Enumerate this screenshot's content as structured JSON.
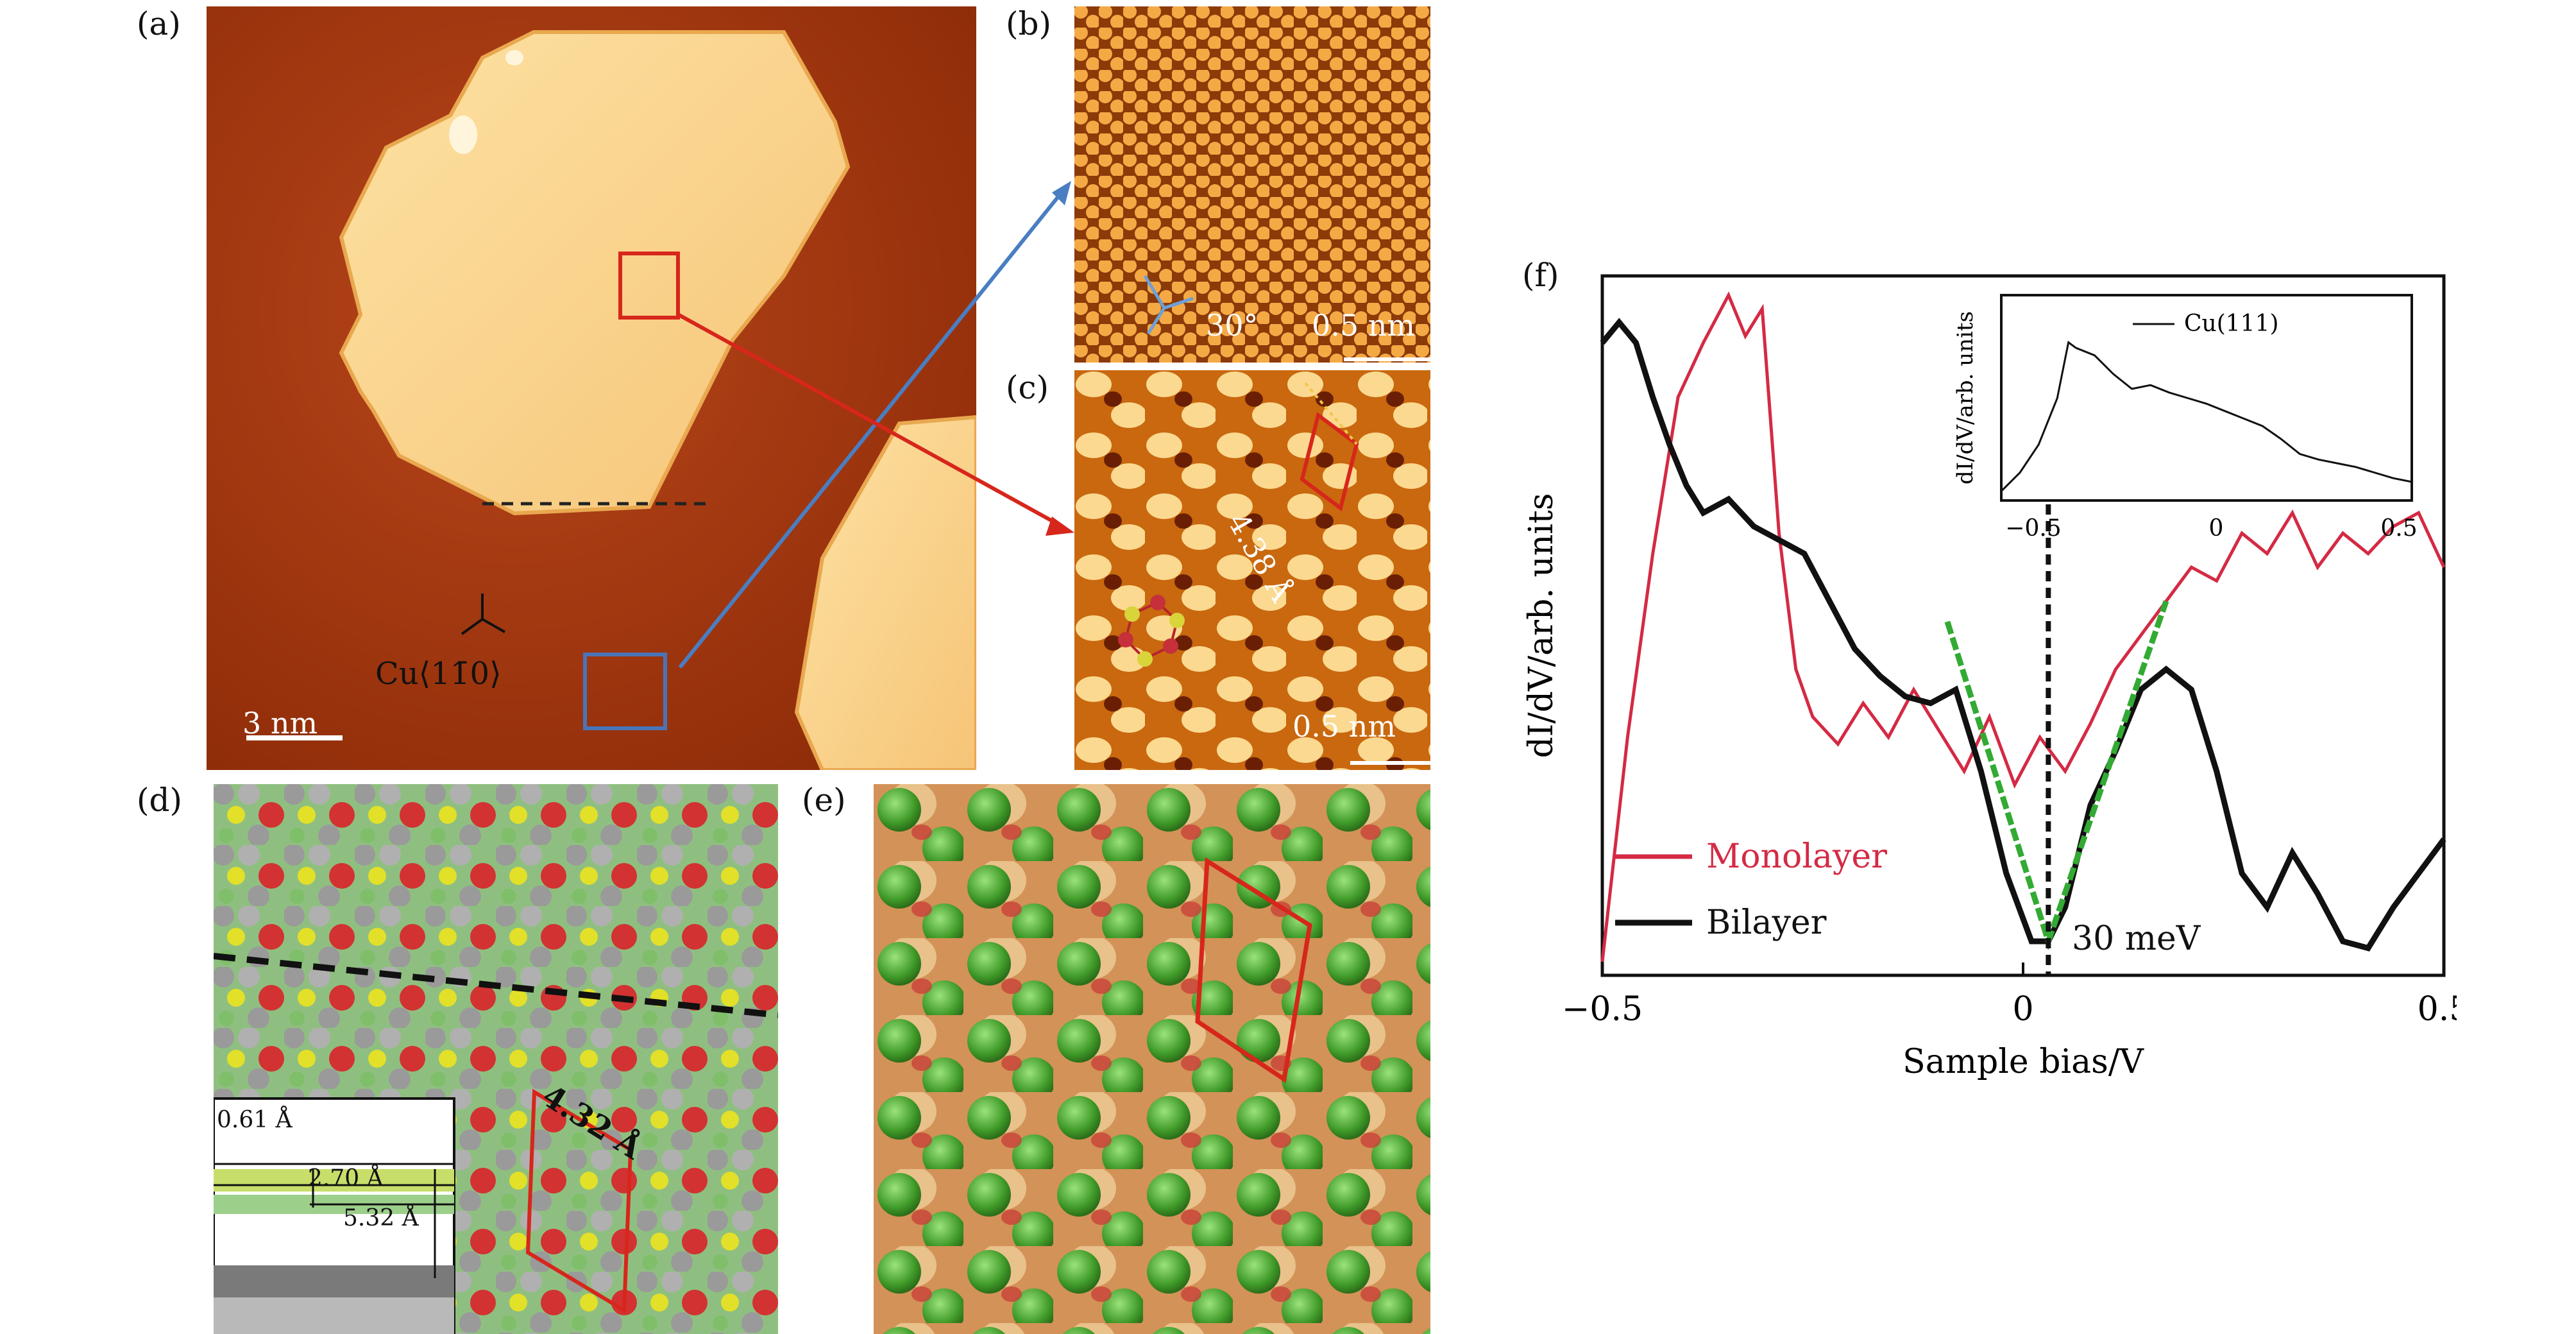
{
  "panels": {
    "a": {
      "label": "(a)",
      "scale": "3 nm",
      "direction": "Cu⟨11̄0⟩"
    },
    "b": {
      "label": "(b)",
      "angle": "30°",
      "scale": "0.5 nm"
    },
    "c": {
      "label": "(c)",
      "lattice": "4.38 Å",
      "scale": "0.5 nm"
    },
    "d": {
      "label": "(d)",
      "lattice": "4.32 Å",
      "inset": {
        "d1": "0.61 Å",
        "d2": "2.70 Å",
        "d3": "5.32 Å"
      }
    },
    "e": {
      "label": "(e)"
    },
    "f": {
      "label": "(f)"
    }
  },
  "colors": {
    "monolayer": "#d42a44",
    "bilayer": "#111111",
    "fit": "#33aa33",
    "stm_dark": "#8b2a07",
    "stm_light": "#fbd990"
  },
  "chart_data": {
    "type": "line",
    "xlabel": "Sample bias/V",
    "ylabel": "dI/dV/arb. units",
    "xlim": [
      -0.5,
      0.5
    ],
    "ylim": [
      0,
      1
    ],
    "x_ticks": [
      "−0.5",
      "0",
      "0.5"
    ],
    "annotation": "30 meV",
    "dirac_point": 0.03,
    "legend_position": "bottom-left",
    "series": [
      {
        "name": "Monolayer",
        "x": [
          -0.5,
          -0.47,
          -0.44,
          -0.41,
          -0.38,
          -0.35,
          -0.33,
          -0.31,
          -0.29,
          -0.27,
          -0.25,
          -0.22,
          -0.19,
          -0.16,
          -0.13,
          -0.1,
          -0.07,
          -0.04,
          -0.01,
          0.02,
          0.05,
          0.08,
          0.11,
          0.14,
          0.17,
          0.2,
          0.23,
          0.26,
          0.29,
          0.32,
          0.35,
          0.38,
          0.41,
          0.44,
          0.47,
          0.5
        ],
        "y": [
          0.02,
          0.35,
          0.62,
          0.85,
          0.93,
          1.0,
          0.94,
          0.98,
          0.65,
          0.45,
          0.38,
          0.34,
          0.4,
          0.35,
          0.42,
          0.36,
          0.3,
          0.38,
          0.28,
          0.35,
          0.3,
          0.37,
          0.45,
          0.5,
          0.55,
          0.6,
          0.58,
          0.65,
          0.62,
          0.68,
          0.6,
          0.65,
          0.62,
          0.66,
          0.68,
          0.6
        ]
      },
      {
        "name": "Bilayer",
        "x": [
          -0.5,
          -0.48,
          -0.46,
          -0.44,
          -0.42,
          -0.4,
          -0.38,
          -0.35,
          -0.32,
          -0.29,
          -0.26,
          -0.23,
          -0.2,
          -0.17,
          -0.14,
          -0.11,
          -0.08,
          -0.05,
          -0.02,
          0.01,
          0.03,
          0.05,
          0.08,
          0.11,
          0.14,
          0.17,
          0.2,
          0.23,
          0.26,
          0.29,
          0.32,
          0.35,
          0.38,
          0.41,
          0.44,
          0.47,
          0.5
        ],
        "y": [
          0.93,
          0.96,
          0.93,
          0.85,
          0.78,
          0.72,
          0.68,
          0.7,
          0.66,
          0.64,
          0.62,
          0.55,
          0.48,
          0.44,
          0.41,
          0.4,
          0.42,
          0.3,
          0.15,
          0.05,
          0.05,
          0.1,
          0.25,
          0.33,
          0.42,
          0.45,
          0.42,
          0.3,
          0.15,
          0.1,
          0.18,
          0.12,
          0.05,
          0.04,
          0.1,
          0.15,
          0.2
        ]
      },
      {
        "name": "",
        "x": [
          -0.09,
          0.03,
          0.17
        ],
        "y": [
          0.52,
          0.05,
          0.55
        ]
      }
    ],
    "inset": {
      "legend": "Cu(111)",
      "ylabel": "dI/dV/arb. units",
      "xlim": [
        -0.6,
        0.5
      ],
      "x_ticks": [
        "−0.5",
        "0",
        "0.5"
      ],
      "series": [
        {
          "name": "Cu(111)",
          "x": [
            -0.6,
            -0.55,
            -0.5,
            -0.45,
            -0.42,
            -0.4,
            -0.35,
            -0.3,
            -0.25,
            -0.2,
            -0.15,
            -0.1,
            -0.05,
            0,
            0.05,
            0.1,
            0.15,
            0.2,
            0.25,
            0.3,
            0.35,
            0.4,
            0.45,
            0.5
          ],
          "y": [
            0.05,
            0.15,
            0.3,
            0.55,
            0.85,
            0.82,
            0.78,
            0.68,
            0.6,
            0.62,
            0.58,
            0.55,
            0.52,
            0.48,
            0.44,
            0.4,
            0.33,
            0.25,
            0.22,
            0.2,
            0.18,
            0.15,
            0.12,
            0.1
          ]
        }
      ]
    }
  }
}
